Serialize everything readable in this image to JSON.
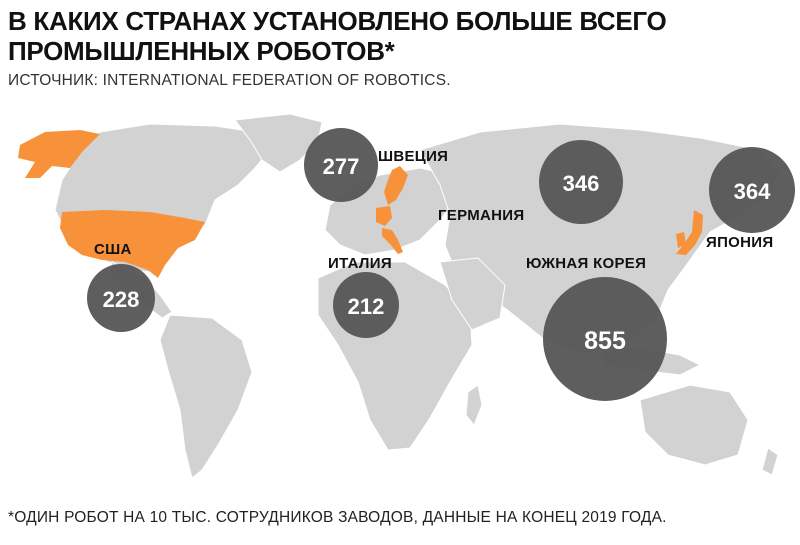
{
  "title": "В КАКИХ СТРАНАХ УСТАНОВЛЕНО БОЛЬШЕ ВСЕГО ПРОМЫШЛЕННЫХ РОБОТОВ*",
  "source": "ИСТОЧНИК: INTERNATIONAL FEDERATION OF ROBOTICS.",
  "footnote": "*ОДИН РОБОТ НА 10 ТЫС. СОТРУДНИКОВ ЗАВОДОВ, ДАННЫЕ НА КОНЕЦ 2019 ГОДА.",
  "colors": {
    "land": "#d2d2d2",
    "highlight": "#f7923a",
    "bubble": "#555555",
    "text": "#111111"
  },
  "countries": [
    {
      "id": "usa",
      "label": "США",
      "value": "228"
    },
    {
      "id": "sweden",
      "label": "ШВЕЦИЯ",
      "value": "277"
    },
    {
      "id": "germany",
      "label": "ГЕРМАНИЯ",
      "value": "346"
    },
    {
      "id": "japan",
      "label": "ЯПОНИЯ",
      "value": "364"
    },
    {
      "id": "italy",
      "label": "ИТАЛИЯ",
      "value": "212"
    },
    {
      "id": "south_korea",
      "label": "ЮЖНАЯ КОРЕЯ",
      "value": "855"
    }
  ]
}
